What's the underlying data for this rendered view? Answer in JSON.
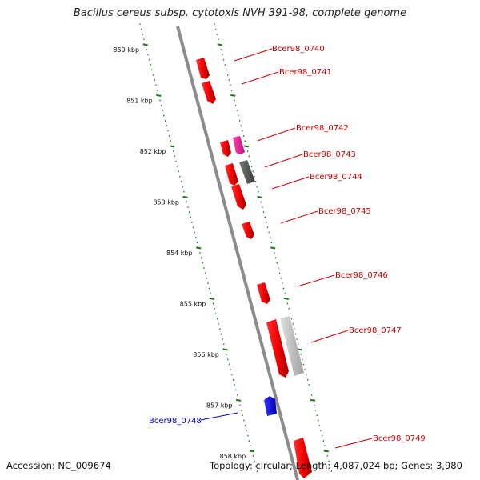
{
  "title": "Bacillus cereus subsp. cytotoxis NVH 391-98, complete genome",
  "footer": {
    "accession": "Accession: NC_009674",
    "topology": "Topology: circular;",
    "length": "Length: 4,087,024 bp;",
    "genes": "Genes: 3,980"
  },
  "colors": {
    "plus_strand": "#ff0000",
    "minus_strand": "#0000ff",
    "pink_feature": "#ff1493",
    "dark_gray_feature": "#555555",
    "light_gray_feature": "#bdbdbd",
    "label_red": "#cc0000",
    "label_blue": "#0000cc",
    "tick_green": "#1a7a1a",
    "backbone": "#8c8c8c"
  },
  "kbp_ticks": [
    "850 kbp",
    "851 kbp",
    "852 kbp",
    "853 kbp",
    "854 kbp",
    "855 kbp",
    "856 kbp",
    "857 kbp",
    "858 kbp"
  ],
  "genes": [
    {
      "label": "Bcer98_0740",
      "strand": "+"
    },
    {
      "label": "Bcer98_0741",
      "strand": "+"
    },
    {
      "label": "Bcer98_0742",
      "strand": "+"
    },
    {
      "label": "Bcer98_0743",
      "strand": "+"
    },
    {
      "label": "Bcer98_0744",
      "strand": "+"
    },
    {
      "label": "Bcer98_0745",
      "strand": "+"
    },
    {
      "label": "Bcer98_0746",
      "strand": "+"
    },
    {
      "label": "Bcer98_0747",
      "strand": "+"
    },
    {
      "label": "Bcer98_0748",
      "strand": "-"
    },
    {
      "label": "Bcer98_0749",
      "strand": "+"
    }
  ]
}
